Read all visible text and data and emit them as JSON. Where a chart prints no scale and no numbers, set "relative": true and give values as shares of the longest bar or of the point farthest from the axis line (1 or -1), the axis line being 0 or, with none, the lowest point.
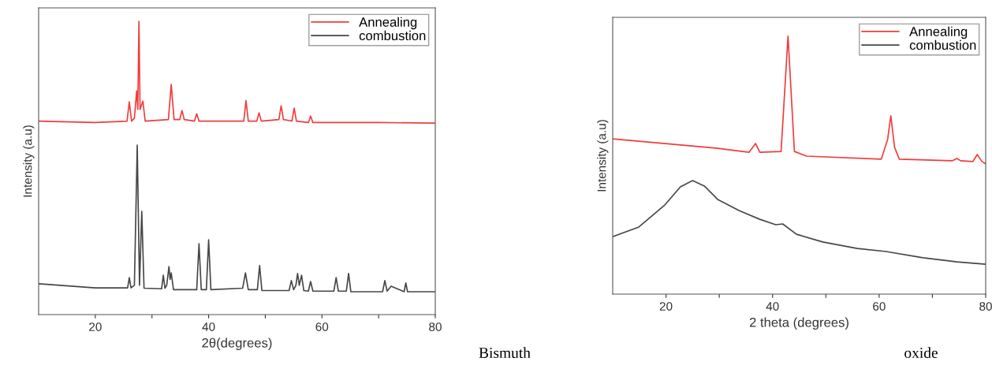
{
  "chart_data": [
    {
      "type": "line",
      "relative": true,
      "xlabel": "2θ(degrees)",
      "ylabel": "Intensity (a.u)",
      "xlim": [
        10,
        80
      ],
      "xticks": [
        20,
        {
          "value": 30,
          "label": null
        },
        40,
        {
          "value": 50,
          "label": null
        },
        60,
        {
          "value": 70,
          "label": null
        },
        80
      ],
      "legend": "top right",
      "grid": false,
      "tick_labels": "x",
      "annotations": [
        "Bismuth"
      ],
      "series": [
        {
          "name": "Annealing",
          "color": "#f03c3c",
          "x": [
            10,
            20,
            25.6,
            26.0,
            26.4,
            26.9,
            27.3,
            27.5,
            27.7,
            27.9,
            28.4,
            28.8,
            32.9,
            33.4,
            33.9,
            34.9,
            35.3,
            35.7,
            37.5,
            37.9,
            38.3,
            46.2,
            46.6,
            47.0,
            48.5,
            48.9,
            49.3,
            52.4,
            52.8,
            53.2,
            54.7,
            55.1,
            55.5,
            57.6,
            58.0,
            58.4,
            70,
            80
          ],
          "values": [
            0.66,
            0.655,
            0.66,
            0.726,
            0.66,
            0.67,
            0.763,
            0.7,
            1.0,
            0.7,
            0.728,
            0.66,
            0.665,
            0.785,
            0.665,
            0.665,
            0.696,
            0.665,
            0.66,
            0.685,
            0.66,
            0.66,
            0.73,
            0.66,
            0.66,
            0.688,
            0.66,
            0.665,
            0.712,
            0.665,
            0.66,
            0.704,
            0.66,
            0.655,
            0.677,
            0.655,
            0.655,
            0.653
          ]
        },
        {
          "name": "combustion",
          "color": "#474747",
          "x": [
            10,
            20,
            25.7,
            26.0,
            26.3,
            26.9,
            27.4,
            27.8,
            28.2,
            28.6,
            31.7,
            32.0,
            32.3,
            32.6,
            33.0,
            33.2,
            33.4,
            33.8,
            37.9,
            38.3,
            38.7,
            39.6,
            40.0,
            40.4,
            46.0,
            46.5,
            47.0,
            48.6,
            49.0,
            49.4,
            54.2,
            54.6,
            55.0,
            55.4,
            55.7,
            56.0,
            56.4,
            56.8,
            57.6,
            58.0,
            58.4,
            62.1,
            62.5,
            62.9,
            64.3,
            64.7,
            65.1,
            70.7,
            71.1,
            71.5,
            72.2,
            74.5,
            74.8,
            75.1,
            80
          ],
          "values": [
            0.105,
            0.091,
            0.091,
            0.126,
            0.091,
            0.1,
            0.578,
            0.1,
            0.352,
            0.09,
            0.088,
            0.134,
            0.09,
            0.1,
            0.164,
            0.12,
            0.142,
            0.085,
            0.085,
            0.242,
            0.085,
            0.085,
            0.255,
            0.085,
            0.09,
            0.142,
            0.085,
            0.085,
            0.167,
            0.082,
            0.082,
            0.116,
            0.085,
            0.1,
            0.14,
            0.1,
            0.134,
            0.082,
            0.08,
            0.113,
            0.08,
            0.08,
            0.126,
            0.08,
            0.08,
            0.14,
            0.078,
            0.078,
            0.116,
            0.08,
            0.097,
            0.078,
            0.108,
            0.078,
            0.078
          ]
        }
      ]
    },
    {
      "type": "line",
      "relative": true,
      "xlabel": "2 theta (degrees)",
      "ylabel": "Intensity (a.u)",
      "xlim": [
        10,
        80
      ],
      "xticks": [
        20,
        {
          "value": 30,
          "label": null
        },
        40,
        {
          "value": 50,
          "label": null
        },
        60,
        {
          "value": 70,
          "label": null
        },
        80
      ],
      "legend": "top right",
      "grid": false,
      "tick_labels": "x",
      "annotations": [
        "oxide"
      ],
      "series": [
        {
          "name": "Annealing",
          "color": "#f03c3c",
          "x": [
            10,
            29.4,
            35.6,
            36.8,
            37.6,
            41.6,
            42.9,
            44.1,
            46.4,
            60.4,
            61.6,
            62.2,
            62.9,
            63.8,
            73.7,
            74.6,
            75.3,
            77.6,
            78.4,
            79.3,
            80
          ],
          "values": [
            0.602,
            0.566,
            0.55,
            0.584,
            0.55,
            0.553,
            1.0,
            0.553,
            0.535,
            0.523,
            0.6,
            0.691,
            0.569,
            0.523,
            0.517,
            0.526,
            0.517,
            0.514,
            0.541,
            0.514,
            0.505
          ]
        },
        {
          "name": "combustion",
          "color": "#474747",
          "x": [
            10,
            14.9,
            19.8,
            22.7,
            25.0,
            27.2,
            29.7,
            33.7,
            37.6,
            40.6,
            41.9,
            44.5,
            49.4,
            55.9,
            61.3,
            68.2,
            74.6,
            80
          ],
          "values": [
            0.223,
            0.26,
            0.346,
            0.416,
            0.44,
            0.419,
            0.367,
            0.324,
            0.29,
            0.269,
            0.272,
            0.232,
            0.202,
            0.177,
            0.165,
            0.141,
            0.125,
            0.116
          ]
        }
      ]
    }
  ]
}
